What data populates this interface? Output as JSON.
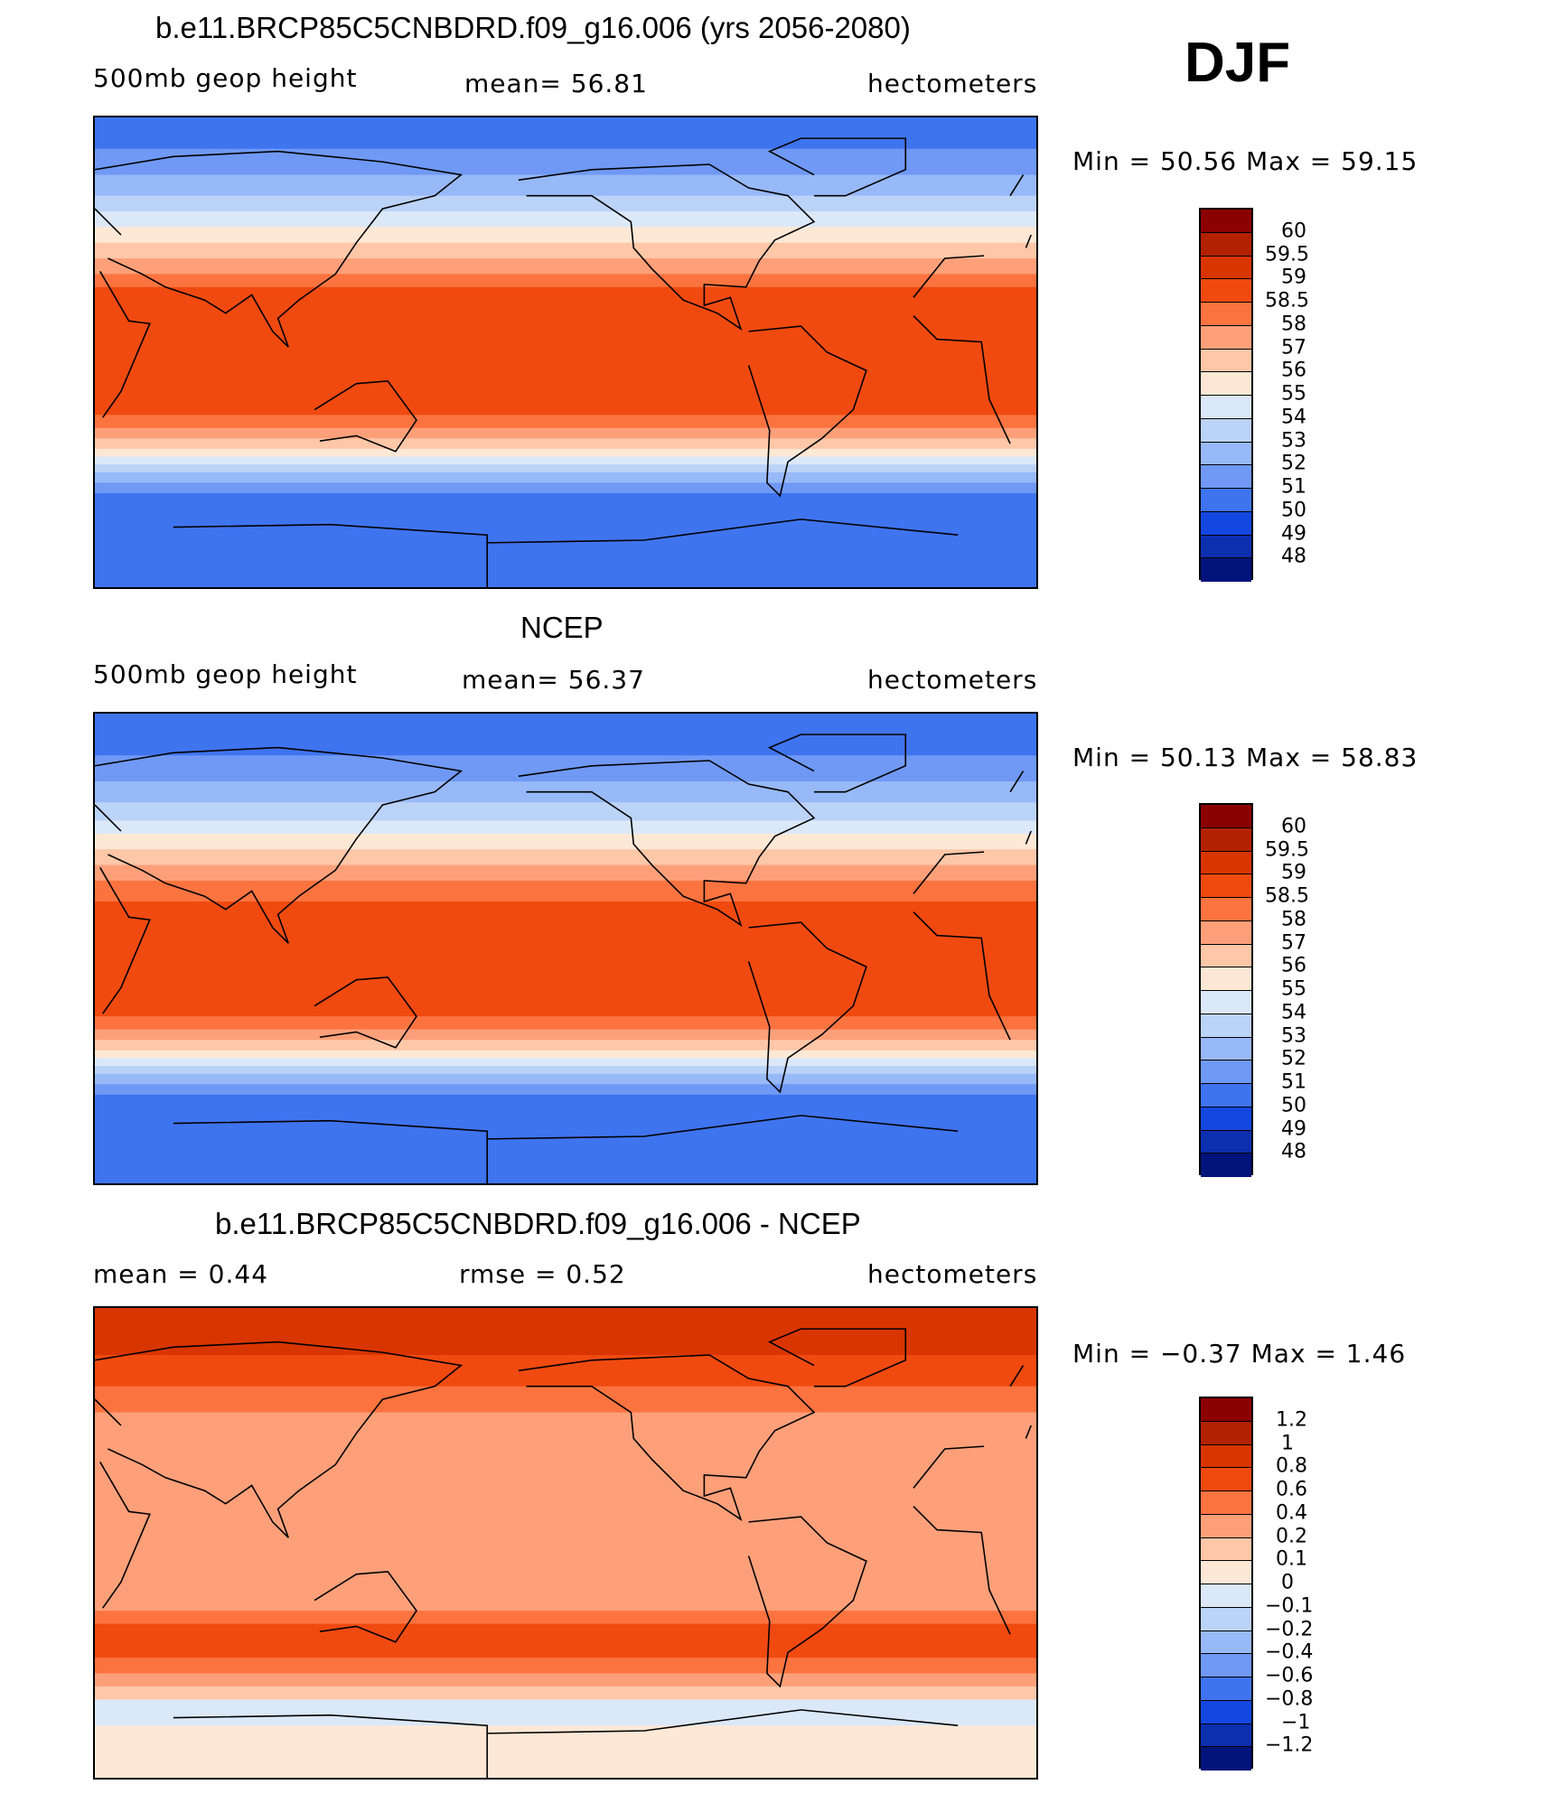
{
  "header": {
    "season": "DJF"
  },
  "panels": [
    {
      "title": "b.e11.BRCP85C5CNBDRD.f09_g16.006 (yrs 2056-2080)",
      "left_label": "500mb geop height",
      "center_label": "mean=   56.81",
      "right_label": "hectometers",
      "minmax": "Min =   50.56  Max =   59.15",
      "colorbar": {
        "labels": [
          "60",
          "59.5",
          "59",
          "58.5",
          "58",
          "57",
          "56",
          "55",
          "54",
          "53",
          "52",
          "51",
          "50",
          "49",
          "48"
        ],
        "colors": [
          "#8b0000",
          "#b22200",
          "#d93500",
          "#f04a10",
          "#fb7440",
          "#fda07a",
          "#fdc7a8",
          "#fde8d6",
          "#dbe8f8",
          "#bcd3f8",
          "#98b9f8",
          "#6f99f5",
          "#3f74ef",
          "#1447df",
          "#0c2fb0",
          "#00137a"
        ]
      },
      "bands": [
        {
          "lat": 90,
          "color": "#3f74ef"
        },
        {
          "lat": 78,
          "color": "#6f99f5"
        },
        {
          "lat": 68,
          "color": "#98b9f8"
        },
        {
          "lat": 60,
          "color": "#bcd3f8"
        },
        {
          "lat": 54,
          "color": "#dbe8f8"
        },
        {
          "lat": 48,
          "color": "#fde8d6"
        },
        {
          "lat": 42,
          "color": "#fdc7a8"
        },
        {
          "lat": 36,
          "color": "#fda07a"
        },
        {
          "lat": 30,
          "color": "#fb7440"
        },
        {
          "lat": 25,
          "color": "#f04a10"
        },
        {
          "lat": -24,
          "color": "#fb7440"
        },
        {
          "lat": -29,
          "color": "#fda07a"
        },
        {
          "lat": -33,
          "color": "#fdc7a8"
        },
        {
          "lat": -37,
          "color": "#fde8d6"
        },
        {
          "lat": -40,
          "color": "#dbe8f8"
        },
        {
          "lat": -43,
          "color": "#bcd3f8"
        },
        {
          "lat": -46,
          "color": "#98b9f8"
        },
        {
          "lat": -50,
          "color": "#6f99f5"
        },
        {
          "lat": -54,
          "color": "#3f74ef"
        },
        {
          "lat": -90,
          "color": "#3f74ef"
        }
      ]
    },
    {
      "title": "NCEP",
      "left_label": "500mb geop height",
      "center_label": "mean=   56.37",
      "right_label": "hectometers",
      "minmax": "Min =   50.13  Max =   58.83",
      "colorbar": {
        "labels": [
          "60",
          "59.5",
          "59",
          "58.5",
          "58",
          "57",
          "56",
          "55",
          "54",
          "53",
          "52",
          "51",
          "50",
          "49",
          "48"
        ],
        "colors": [
          "#8b0000",
          "#b22200",
          "#d93500",
          "#f04a10",
          "#fb7440",
          "#fda07a",
          "#fdc7a8",
          "#fde8d6",
          "#dbe8f8",
          "#bcd3f8",
          "#98b9f8",
          "#6f99f5",
          "#3f74ef",
          "#1447df",
          "#0c2fb0",
          "#00137a"
        ]
      },
      "bands": [
        {
          "lat": 90,
          "color": "#3f74ef"
        },
        {
          "lat": 74,
          "color": "#6f99f5"
        },
        {
          "lat": 64,
          "color": "#98b9f8"
        },
        {
          "lat": 56,
          "color": "#bcd3f8"
        },
        {
          "lat": 49,
          "color": "#dbe8f8"
        },
        {
          "lat": 44,
          "color": "#fde8d6"
        },
        {
          "lat": 38,
          "color": "#fdc7a8"
        },
        {
          "lat": 32,
          "color": "#fda07a"
        },
        {
          "lat": 26,
          "color": "#fb7440"
        },
        {
          "lat": 18,
          "color": "#f04a10"
        },
        {
          "lat": -26,
          "color": "#fb7440"
        },
        {
          "lat": -31,
          "color": "#fda07a"
        },
        {
          "lat": -35,
          "color": "#fdc7a8"
        },
        {
          "lat": -39,
          "color": "#fde8d6"
        },
        {
          "lat": -42,
          "color": "#dbe8f8"
        },
        {
          "lat": -45,
          "color": "#bcd3f8"
        },
        {
          "lat": -48,
          "color": "#98b9f8"
        },
        {
          "lat": -52,
          "color": "#6f99f5"
        },
        {
          "lat": -56,
          "color": "#3f74ef"
        },
        {
          "lat": -90,
          "color": "#3f74ef"
        }
      ]
    },
    {
      "title": "b.e11.BRCP85C5CNBDRD.f09_g16.006 - NCEP",
      "left_label": "mean =     0.44",
      "center_label": "rmse =     0.52",
      "right_label": "hectometers",
      "minmax": "Min =   −0.37  Max =     1.46",
      "colorbar": {
        "labels": [
          "1.2",
          "1",
          "0.8",
          "0.6",
          "0.4",
          "0.2",
          "0.1",
          "0",
          "−0.1",
          "−0.2",
          "−0.4",
          "−0.6",
          "−0.8",
          "−1",
          "−1.2"
        ],
        "colors": [
          "#8b0000",
          "#b22200",
          "#d93500",
          "#f04a10",
          "#fb7440",
          "#fda07a",
          "#fdc7a8",
          "#fde8d6",
          "#dbe8f8",
          "#bcd3f8",
          "#98b9f8",
          "#6f99f5",
          "#3f74ef",
          "#1447df",
          "#0c2fb0",
          "#00137a"
        ]
      },
      "bands": [
        {
          "lat": 90,
          "color": "#d93500"
        },
        {
          "lat": 72,
          "color": "#f04a10"
        },
        {
          "lat": 60,
          "color": "#fb7440"
        },
        {
          "lat": 50,
          "color": "#fda07a"
        },
        {
          "lat": -26,
          "color": "#fb7440"
        },
        {
          "lat": -31,
          "color": "#f04a10"
        },
        {
          "lat": -44,
          "color": "#fb7440"
        },
        {
          "lat": -50,
          "color": "#fda07a"
        },
        {
          "lat": -55,
          "color": "#fdc7a8"
        },
        {
          "lat": -60,
          "color": "#dbe8f8"
        },
        {
          "lat": -70,
          "color": "#fde8d6"
        },
        {
          "lat": -90,
          "color": "#fde8d6"
        }
      ]
    }
  ]
}
